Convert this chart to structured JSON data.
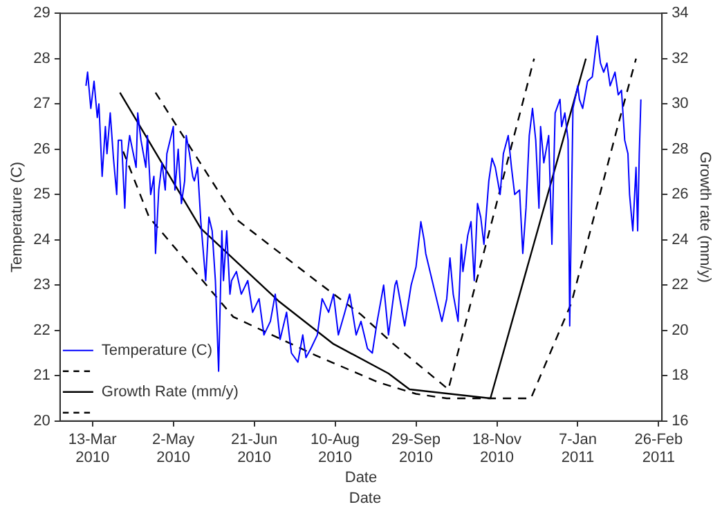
{
  "chart_data": {
    "type": "line",
    "xlabel": "Date",
    "ylabel": "Temperature (C)",
    "y2label": "Growth rate (mm/y)",
    "annotations": [
      "Date"
    ],
    "xlim": [
      "2010-02-21",
      "2011-02-28"
    ],
    "xticks": [
      {
        "value": "2010-03-13",
        "label": "13-Mar 2010"
      },
      {
        "value": "2010-05-02",
        "label": "2-May 2010"
      },
      {
        "value": "2010-06-21",
        "label": "21-Jun 2010"
      },
      {
        "value": "2010-08-10",
        "label": "10-Aug 2010"
      },
      {
        "value": "2010-09-29",
        "label": "29-Sep 2010"
      },
      {
        "value": "2010-11-18",
        "label": "18-Nov 2010"
      },
      {
        "value": "2011-01-07",
        "label": "7-Jan 2011"
      },
      {
        "value": "2011-02-26",
        "label": "26-Feb 2011"
      }
    ],
    "ylim": [
      20,
      29
    ],
    "yticks": [
      20,
      21,
      22,
      23,
      24,
      25,
      26,
      27,
      28,
      29
    ],
    "y2lim": [
      16,
      34
    ],
    "y2ticks": [
      16,
      18,
      20,
      22,
      24,
      26,
      28,
      30,
      32,
      34
    ],
    "grid": false,
    "legend": "bottom left",
    "marker": "none",
    "series": [
      {
        "name": "Temperature (C)",
        "color": "#0000ff",
        "axis": "y",
        "line_style": "solid",
        "x": [
          "2010-03-09",
          "2010-03-10",
          "2010-03-12",
          "2010-03-14",
          "2010-03-16",
          "2010-03-17",
          "2010-03-19",
          "2010-03-21",
          "2010-03-22",
          "2010-03-24",
          "2010-03-26",
          "2010-03-28",
          "2010-03-29",
          "2010-03-31",
          "2010-04-02",
          "2010-04-03",
          "2010-04-05",
          "2010-04-09",
          "2010-04-10",
          "2010-04-12",
          "2010-04-15",
          "2010-04-16",
          "2010-04-18",
          "2010-04-20",
          "2010-04-21",
          "2010-04-23",
          "2010-04-25",
          "2010-04-27",
          "2010-04-28",
          "2010-05-02",
          "2010-05-03",
          "2010-05-05",
          "2010-05-07",
          "2010-05-09",
          "2010-05-10",
          "2010-05-12",
          "2010-05-14",
          "2010-05-15",
          "2010-05-17",
          "2010-05-19",
          "2010-05-22",
          "2010-05-24",
          "2010-05-26",
          "2010-05-28",
          "2010-05-30",
          "2010-06-01",
          "2010-06-02",
          "2010-06-04",
          "2010-06-06",
          "2010-06-07",
          "2010-06-10",
          "2010-06-13",
          "2010-06-17",
          "2010-06-20",
          "2010-06-24",
          "2010-06-27",
          "2010-07-01",
          "2010-07-04",
          "2010-07-07",
          "2010-07-11",
          "2010-07-14",
          "2010-07-18",
          "2010-07-21",
          "2010-07-23",
          "2010-07-26",
          "2010-07-30",
          "2010-08-02",
          "2010-08-06",
          "2010-08-09",
          "2010-08-12",
          "2010-08-16",
          "2010-08-19",
          "2010-08-23",
          "2010-08-26",
          "2010-08-30",
          "2010-09-02",
          "2010-09-05",
          "2010-09-09",
          "2010-09-12",
          "2010-09-16",
          "2010-09-17",
          "2010-09-20",
          "2010-09-22",
          "2010-09-26",
          "2010-09-29",
          "2010-10-02",
          "2010-10-04",
          "2010-10-05",
          "2010-10-09",
          "2010-10-11",
          "2010-10-15",
          "2010-10-18",
          "2010-10-20",
          "2010-10-22",
          "2010-10-25",
          "2010-10-27",
          "2010-10-28",
          "2010-10-31",
          "2010-11-02",
          "2010-11-04",
          "2010-11-06",
          "2010-11-08",
          "2010-11-10",
          "2010-11-13",
          "2010-11-15",
          "2010-11-17",
          "2010-11-20",
          "2010-11-22",
          "2010-11-25",
          "2010-11-27",
          "2010-11-29",
          "2010-12-02",
          "2010-12-04",
          "2010-12-06",
          "2010-12-08",
          "2010-12-10",
          "2010-12-12",
          "2010-12-14",
          "2010-12-15",
          "2010-12-17",
          "2010-12-20",
          "2010-12-22",
          "2010-12-24",
          "2010-12-27",
          "2010-12-28",
          "2010-12-30",
          "2011-01-01",
          "2011-01-02",
          "2011-01-04",
          "2011-01-07",
          "2011-01-08",
          "2011-01-10",
          "2011-01-13",
          "2011-01-16",
          "2011-01-19",
          "2011-01-21",
          "2011-01-23",
          "2011-01-25",
          "2011-01-27",
          "2011-01-30",
          "2011-02-01",
          "2011-02-03",
          "2011-02-05",
          "2011-02-07",
          "2011-02-08",
          "2011-02-10",
          "2011-02-12",
          "2011-02-13",
          "2011-02-14",
          "2011-02-15"
        ],
        "values": [
          27.4,
          27.7,
          26.9,
          27.5,
          26.7,
          27.0,
          25.4,
          26.5,
          25.9,
          26.8,
          25.8,
          25.0,
          26.2,
          26.2,
          24.7,
          25.7,
          26.3,
          25.6,
          26.8,
          26.2,
          25.6,
          26.3,
          25.0,
          25.4,
          23.7,
          25.1,
          25.7,
          25.1,
          25.9,
          26.5,
          25.1,
          26.0,
          24.8,
          25.3,
          26.3,
          25.9,
          25.4,
          25.3,
          25.6,
          24.4,
          23.1,
          24.5,
          24.2,
          23.1,
          21.1,
          24.2,
          23.1,
          24.2,
          22.8,
          23.1,
          23.3,
          22.8,
          23.1,
          22.4,
          22.7,
          21.9,
          22.2,
          22.8,
          21.8,
          22.4,
          21.5,
          21.3,
          21.9,
          21.4,
          21.6,
          21.9,
          22.7,
          22.4,
          22.8,
          21.9,
          22.4,
          22.8,
          21.9,
          22.2,
          21.6,
          21.5,
          22.2,
          23.0,
          21.9,
          23.0,
          23.1,
          22.5,
          22.1,
          23.0,
          23.4,
          24.4,
          24.0,
          23.7,
          23.1,
          22.8,
          22.2,
          22.7,
          23.6,
          22.8,
          22.2,
          23.9,
          23.3,
          24.1,
          24.4,
          23.1,
          24.8,
          24.5,
          23.9,
          25.3,
          25.8,
          25.6,
          25.0,
          25.9,
          26.3,
          25.6,
          25.0,
          25.1,
          23.7,
          24.7,
          26.3,
          26.9,
          26.2,
          24.7,
          26.5,
          25.7,
          26.3,
          23.9,
          26.8,
          27.1,
          26.5,
          26.8,
          26.2,
          22.1,
          26.9,
          27.4,
          27.1,
          26.9,
          27.5,
          27.6,
          28.5,
          27.9,
          27.7,
          27.9,
          27.4,
          27.7,
          27.2,
          27.3,
          26.2,
          25.9,
          25.0,
          24.2,
          25.6,
          24.2,
          25.9,
          27.1
        ]
      },
      {
        "color": "#000000",
        "axis": "y2",
        "line_style": "dashed",
        "x": [
          "2010-04-21",
          "2010-05-15",
          "2010-06-10",
          "2010-07-29",
          "2010-08-26",
          "2010-09-15",
          "2010-10-19",
          "2010-12-11"
        ],
        "values": [
          30.5,
          27.8,
          24.9,
          22.2,
          20.7,
          19.4,
          17.4,
          32.0
        ]
      },
      {
        "name": "Growth Rate (mm/y)",
        "color": "#000000",
        "axis": "y2",
        "line_style": "solid",
        "x": [
          "2010-03-30",
          "2010-05-19",
          "2010-07-06",
          "2010-08-09",
          "2010-09-12",
          "2010-09-25",
          "2010-11-14",
          "2011-01-12"
        ],
        "values": [
          30.5,
          24.5,
          21.3,
          19.4,
          18.1,
          17.4,
          17.0,
          32.0
        ]
      },
      {
        "color": "#000000",
        "axis": "y2",
        "line_style": "dashed",
        "x": [
          "2010-04-01",
          "2010-04-17",
          "2010-06-08",
          "2010-07-29",
          "2010-09-06",
          "2010-09-29",
          "2010-10-18",
          "2010-12-09",
          "2011-01-03",
          "2011-02-01",
          "2011-02-12"
        ],
        "values": [
          27.9,
          25.0,
          20.6,
          18.9,
          17.7,
          17.2,
          17.0,
          17.0,
          21.2,
          29.1,
          32.0
        ]
      }
    ]
  }
}
